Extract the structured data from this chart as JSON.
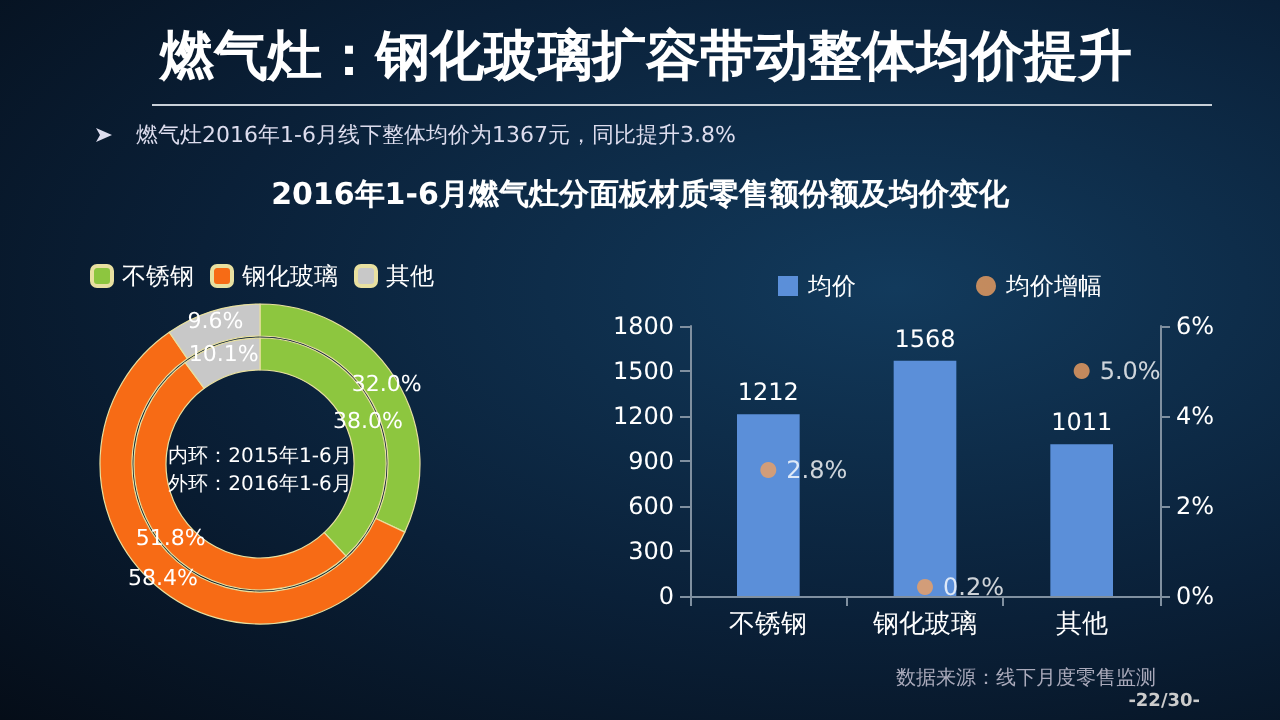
{
  "chart_data": [
    {
      "type": "donut",
      "title": "燃气灶：钢化玻璃扩容带动整体均价提升",
      "subtitle": "2016年1-6月燃气灶分面板材质零售额份额及均价变化",
      "annotations": [
        "燃气灶2016年1-6月线下整体均价为1367元，同比提升3.8%",
        "内环：2015年1-6月",
        "外环：2016年1-6月"
      ],
      "categories": [
        "不锈钢",
        "钢化玻璃",
        "其他"
      ],
      "colors": [
        "#8dc63f",
        "#f76b15",
        "#c8c8c8"
      ],
      "legend": "top left",
      "data_labels": true,
      "series": [
        {
          "values": [
            32.0,
            58.4,
            9.6
          ],
          "value_labels": [
            "32.0%",
            "58.4%",
            "9.6%"
          ]
        },
        {
          "values": [
            38.0,
            51.8,
            10.1
          ],
          "value_labels": [
            "38.0%",
            "51.8%",
            "10.1%"
          ]
        }
      ]
    },
    {
      "type": "bar",
      "categories": [
        "不锈钢",
        "钢化玻璃",
        "其他"
      ],
      "legend": "top",
      "grid": false,
      "ylim": [
        0,
        1800
      ],
      "yticks": [
        0,
        300,
        600,
        900,
        1200,
        1500,
        1800
      ],
      "y2lim": [
        0,
        6
      ],
      "y2ticks": [
        {
          "value": 0,
          "label": "0%"
        },
        {
          "value": 2,
          "label": "2%"
        },
        {
          "value": 4,
          "label": "4%"
        },
        {
          "value": 6,
          "label": "6%"
        }
      ],
      "annotations": [
        "数据来源：线下月度零售监测",
        "-22/30-"
      ],
      "series": [
        {
          "name": "均价",
          "type": "bar",
          "color": "#5b8fd9",
          "values": [
            1212,
            1568,
            1011
          ],
          "value_labels": [
            "1212",
            "1568",
            "1011"
          ]
        },
        {
          "name": "均价增幅",
          "type": "scatter",
          "axis": "y2",
          "marker": "circle",
          "color": "#f0a060",
          "x": [
            "不锈钢",
            "钢化玻璃",
            "其他"
          ],
          "values": [
            2.8,
            0.2,
            5.0
          ],
          "value_labels": [
            "2.8%",
            "0.2%",
            "5.0%"
          ]
        }
      ]
    }
  ]
}
